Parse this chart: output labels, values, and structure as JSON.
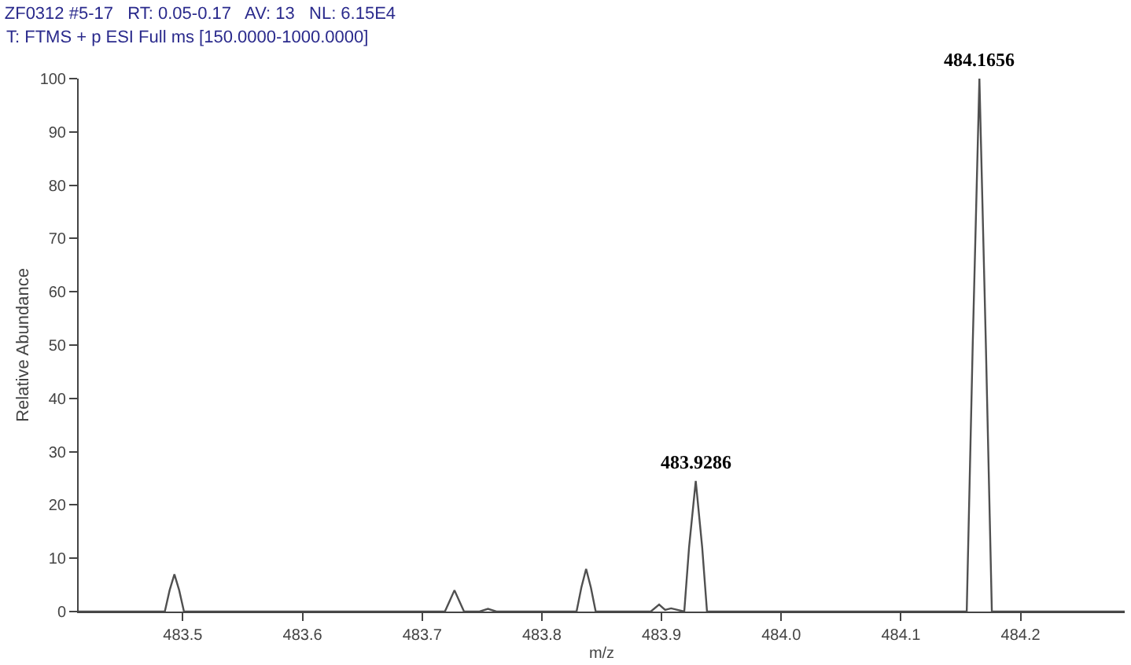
{
  "chart_data": {
    "type": "line",
    "title": "ZF0312 #5-17   RT: 0.05-0.17   AV: 13   NL: 6.15E4",
    "subtitle": "T: FTMS + p ESI Full ms [150.0000-1000.0000]",
    "xlabel": "m/z",
    "ylabel": "Relative Abundance",
    "series": [
      {
        "color": "#505050",
        "x": [
          483.413,
          483.485,
          483.489,
          483.493,
          483.497,
          483.501,
          483.719,
          483.723,
          483.727,
          483.731,
          483.735,
          483.748,
          483.755,
          483.762,
          483.829,
          483.833,
          483.837,
          483.841,
          483.845,
          483.891,
          483.898,
          483.903,
          483.908,
          483.919,
          483.923,
          483.9286,
          483.934,
          483.938,
          484.155,
          484.16,
          484.1656,
          484.171,
          484.176,
          484.287
        ],
        "values": [
          0,
          0,
          4,
          7,
          4,
          0,
          0,
          2,
          4,
          2,
          0,
          0,
          0.5,
          0,
          0,
          4.5,
          8,
          4.5,
          0,
          0,
          1.3,
          0.3,
          0.6,
          0,
          12,
          24.5,
          12,
          0,
          0,
          50,
          100,
          50,
          0,
          0
        ]
      }
    ],
    "xlim": [
      483.413,
      484.287
    ],
    "xticks": [
      483.5,
      483.6,
      483.7,
      483.8,
      483.9,
      {
        "value": 484.0,
        "label": "484.0"
      },
      484.1,
      484.2
    ],
    "ylim": [
      0,
      100
    ],
    "yticks": [
      0,
      10,
      20,
      30,
      40,
      50,
      60,
      70,
      80,
      90,
      100
    ],
    "grid": false,
    "marker": "none",
    "line_style": "solid",
    "annotations": [
      {
        "text": "483.9286",
        "x": 483.9286,
        "y": 24.5
      },
      {
        "text": "484.1656",
        "x": 484.1656,
        "y": 100
      }
    ]
  }
}
